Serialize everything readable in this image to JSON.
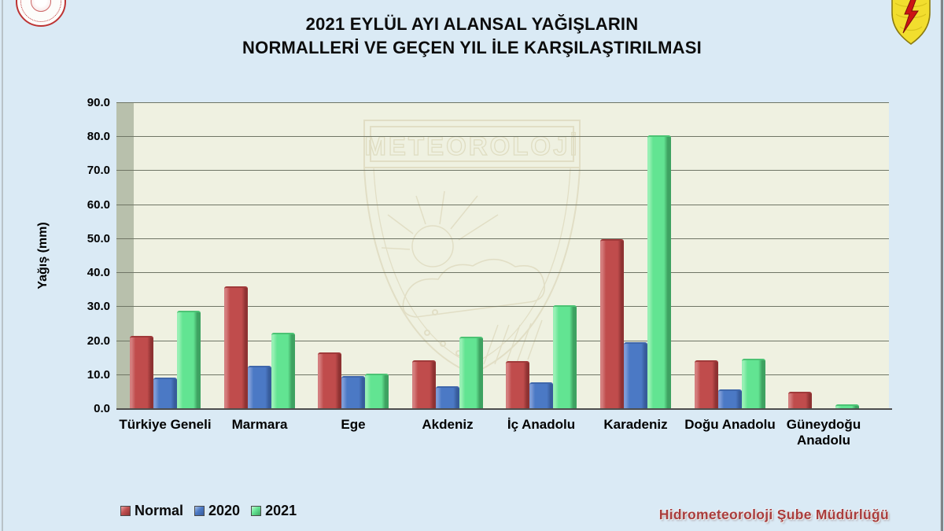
{
  "title": {
    "line1": "2021 EYLÜL AYI ALANSAL YAĞIŞLARIN",
    "line2": "NORMALLERİ VE GEÇEN YIL İLE KARŞILAŞTIRILMASI"
  },
  "watermark": {
    "text": "METEOROLOJİ"
  },
  "credit": "Hidrometeoroloji Şube Müdürlüğü",
  "icons": {
    "top_left": "ministry-emblem",
    "top_right": "mgm-lightning-shield"
  },
  "colors": {
    "background": "#daeaf5",
    "plot_background": "#eff1e1",
    "plot_wall": "#b8c0ac",
    "gridline": "#6f7565",
    "series_normal": "#c04c4c",
    "series_2020": "#4b79c5",
    "series_2021": "#62e492",
    "credit_text": "#a93c3c"
  },
  "chart_data": {
    "type": "bar",
    "title": "2021 EYLÜL AYI ALANSAL YAĞIŞLARIN NORMALLERİ VE GEÇEN YIL İLE KARŞILAŞTIRILMASI",
    "xlabel": "",
    "ylabel": "Yağış (mm)",
    "ylim": [
      0,
      90
    ],
    "ytick_step": 10,
    "ytick_labels": [
      "0.0",
      "10.0",
      "20.0",
      "30.0",
      "40.0",
      "50.0",
      "60.0",
      "70.0",
      "80.0",
      "90.0"
    ],
    "grid": true,
    "legend_position": "bottom-left",
    "categories": [
      "Türkiye Geneli",
      "Marmara",
      "Ege",
      "Akdeniz",
      "İç Anadolu",
      "Karadeniz",
      "Doğu Anadolu",
      "Güneydoğu Anadolu"
    ],
    "series": [
      {
        "name": "Normal",
        "color": "#c04c4c",
        "values": [
          21.5,
          36.0,
          16.6,
          14.4,
          14.0,
          50.0,
          14.4,
          5.1
        ]
      },
      {
        "name": "2020",
        "color": "#4b79c5",
        "values": [
          9.3,
          12.8,
          9.7,
          6.6,
          7.9,
          19.7,
          5.8,
          0.0
        ]
      },
      {
        "name": "2021",
        "color": "#62e492",
        "values": [
          29.0,
          22.5,
          10.3,
          21.4,
          30.6,
          80.5,
          14.8,
          1.5
        ]
      }
    ]
  }
}
